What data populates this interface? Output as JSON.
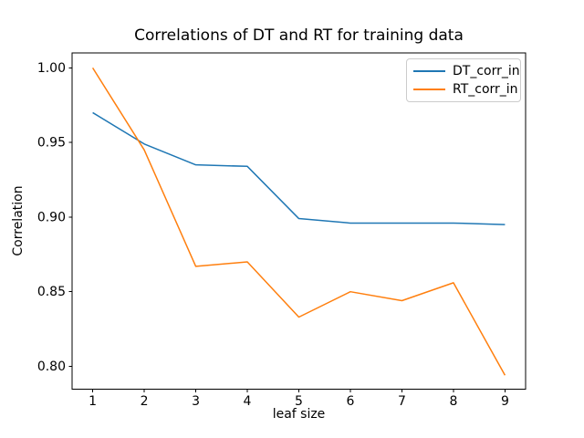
{
  "figure": {
    "background": "#ffffff"
  },
  "chart_data": {
    "type": "line",
    "title": "Correlations of DT and RT for training data",
    "xlabel": "leaf size",
    "ylabel": "Correlation",
    "x": [
      1,
      2,
      3,
      4,
      5,
      6,
      7,
      8,
      9
    ],
    "series": [
      {
        "name": "DT_corr_in",
        "color": "#1f77b4",
        "values": [
          0.97,
          0.949,
          0.935,
          0.934,
          0.899,
          0.896,
          0.896,
          0.896,
          0.895
        ]
      },
      {
        "name": "RT_corr_in",
        "color": "#ff7f0e",
        "values": [
          1.0,
          0.945,
          0.867,
          0.87,
          0.833,
          0.85,
          0.844,
          0.856,
          0.794
        ]
      }
    ],
    "xlim": [
      0.6,
      9.4
    ],
    "ylim": [
      0.7847,
      1.01
    ],
    "xticks": [
      1,
      2,
      3,
      4,
      5,
      6,
      7,
      8,
      9
    ],
    "yticks": [
      0.8,
      0.85,
      0.9,
      0.95,
      1.0
    ],
    "grid": false,
    "legend": {
      "position": "upper right",
      "entries": [
        "DT_corr_in",
        "RT_corr_in"
      ]
    }
  }
}
